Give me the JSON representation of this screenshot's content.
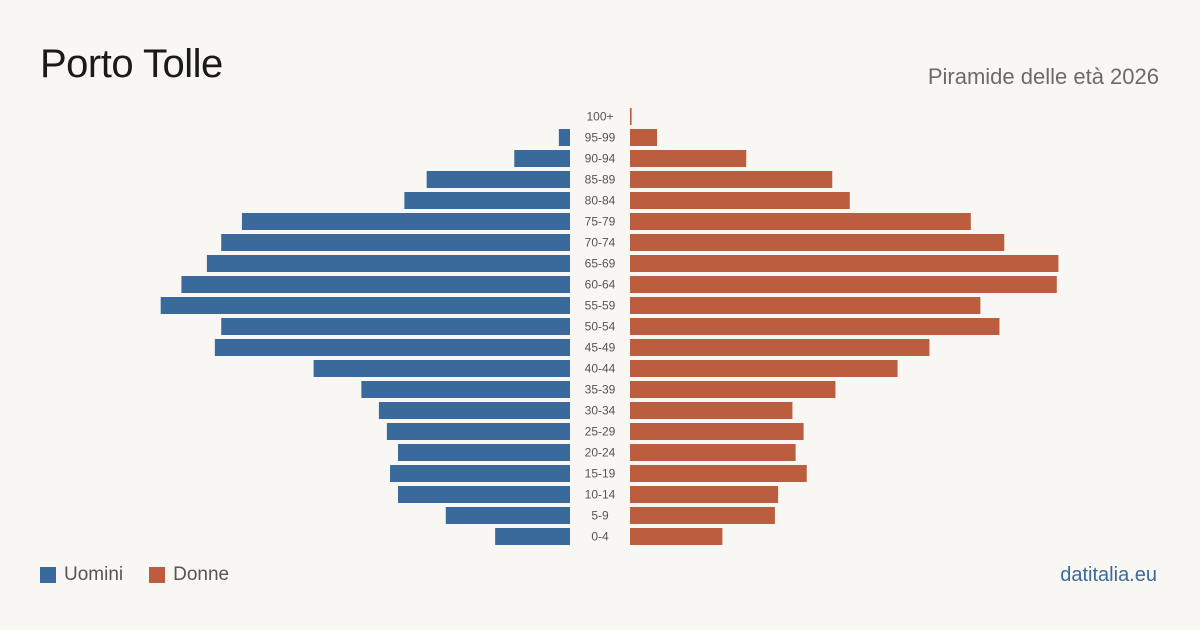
{
  "header": {
    "title": "Porto Tolle",
    "subtitle": "Piramide delle età 2026"
  },
  "legend": {
    "men_label": "Uomini",
    "women_label": "Donne"
  },
  "source": "datitalia.eu",
  "colors": {
    "men": "#3a6a9b",
    "women": "#bb5e3f",
    "background": "#f9f7f3",
    "source_text": "#3a6a9b"
  },
  "chart_data": {
    "type": "bar",
    "orientation": "horizontal-pyramid",
    "categories": [
      "100+",
      "95-99",
      "90-94",
      "85-89",
      "80-84",
      "75-79",
      "70-74",
      "65-69",
      "60-64",
      "55-59",
      "50-54",
      "45-49",
      "40-44",
      "35-39",
      "30-34",
      "25-29",
      "20-24",
      "15-19",
      "10-14",
      "5-9",
      "0-4"
    ],
    "series": [
      {
        "name": "Uomini",
        "values": [
          0,
          7,
          35,
          90,
          104,
          206,
          219,
          228,
          244,
          257,
          219,
          223,
          161,
          131,
          120,
          115,
          108,
          113,
          108,
          78,
          47
        ]
      },
      {
        "name": "Donne",
        "values": [
          1,
          17,
          73,
          127,
          138,
          214,
          235,
          269,
          268,
          220,
          232,
          188,
          168,
          129,
          102,
          109,
          104,
          111,
          93,
          91,
          58
        ]
      }
    ],
    "xlim": [
      0,
      270
    ],
    "grid": false,
    "legend_position": "bottom-left"
  }
}
